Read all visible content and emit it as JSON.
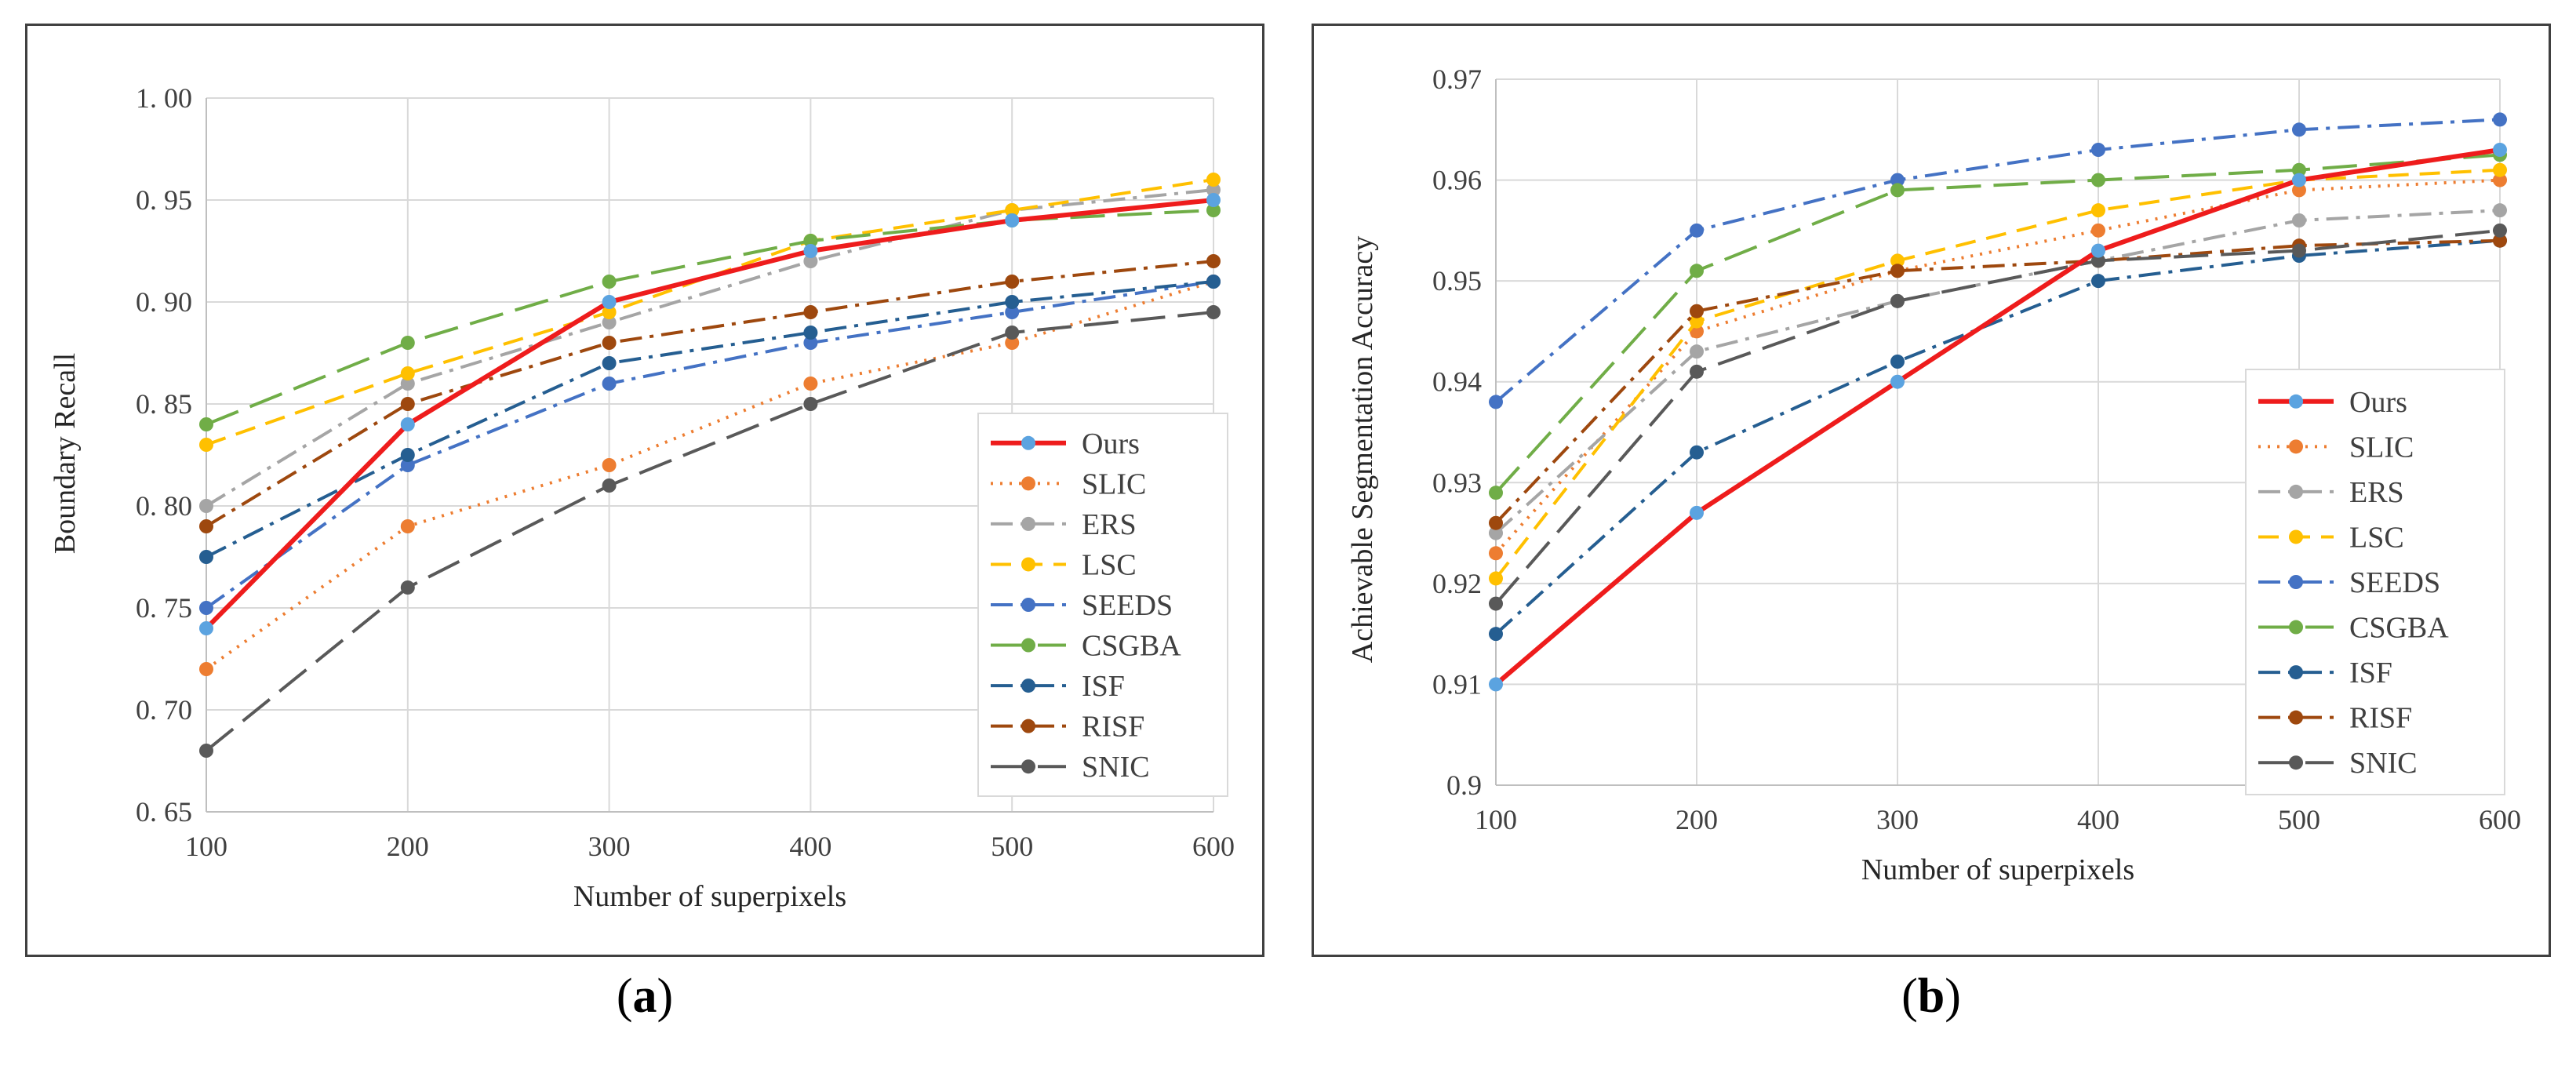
{
  "chart_data": [
    {
      "type": "line",
      "panel": "a",
      "caption_letter": "a",
      "xlabel": "Number of superpixels",
      "ylabel": "Boundary Recall",
      "x": [
        100,
        200,
        300,
        400,
        500,
        600
      ],
      "xticks": [
        "100",
        "200",
        "300",
        "400",
        "500",
        "600"
      ],
      "yticks": [
        "0. 65",
        "0. 70",
        "0. 75",
        "0. 80",
        "0. 85",
        "0. 90",
        "0. 95",
        "1. 00"
      ],
      "ytick_values": [
        0.65,
        0.7,
        0.75,
        0.8,
        0.85,
        0.9,
        0.95,
        1.0
      ],
      "ylim": [
        0.65,
        1.0
      ],
      "grid": true,
      "legend_position": "bottom-right",
      "series": [
        {
          "name": "Ours",
          "color": "#ee1c1c",
          "marker": "#5ba3e0",
          "dash": "solid",
          "values": [
            0.74,
            0.84,
            0.9,
            0.925,
            0.94,
            0.95
          ]
        },
        {
          "name": "SLIC",
          "color": "#ed7d31",
          "marker": "#ed7d31",
          "dash": "dot",
          "values": [
            0.72,
            0.79,
            0.82,
            0.86,
            0.88,
            0.91
          ]
        },
        {
          "name": "ERS",
          "color": "#a5a5a5",
          "marker": "#a5a5a5",
          "dash": "dashdot",
          "values": [
            0.8,
            0.86,
            0.89,
            0.92,
            0.945,
            0.955
          ]
        },
        {
          "name": "LSC",
          "color": "#ffc000",
          "marker": "#ffc000",
          "dash": "dash",
          "values": [
            0.83,
            0.865,
            0.895,
            0.93,
            0.945,
            0.96
          ]
        },
        {
          "name": "SEEDS",
          "color": "#4472c4",
          "marker": "#4472c4",
          "dash": "dashdot",
          "values": [
            0.75,
            0.82,
            0.86,
            0.88,
            0.895,
            0.91
          ]
        },
        {
          "name": "CSGBA",
          "color": "#70ad47",
          "marker": "#70ad47",
          "dash": "longdash",
          "values": [
            0.84,
            0.88,
            0.91,
            0.93,
            0.94,
            0.945
          ]
        },
        {
          "name": "ISF",
          "color": "#255e91",
          "marker": "#255e91",
          "dash": "dashdot",
          "values": [
            0.775,
            0.825,
            0.87,
            0.885,
            0.9,
            0.91
          ]
        },
        {
          "name": "RISF",
          "color": "#9e480e",
          "marker": "#9e480e",
          "dash": "dashdot",
          "values": [
            0.79,
            0.85,
            0.88,
            0.895,
            0.91,
            0.92
          ]
        },
        {
          "name": "SNIC",
          "color": "#595959",
          "marker": "#595959",
          "dash": "longdash",
          "values": [
            0.68,
            0.76,
            0.81,
            0.85,
            0.885,
            0.895
          ]
        }
      ]
    },
    {
      "type": "line",
      "panel": "b",
      "caption_letter": "b",
      "xlabel": "Number of superpixels",
      "ylabel": "Achievable Segmentation Accuracy",
      "x": [
        100,
        200,
        300,
        400,
        500,
        600
      ],
      "xticks": [
        "100",
        "200",
        "300",
        "400",
        "500",
        "600"
      ],
      "yticks": [
        "0.9",
        "0.91",
        "0.92",
        "0.93",
        "0.94",
        "0.95",
        "0.96",
        "0.97"
      ],
      "ytick_values": [
        0.9,
        0.91,
        0.92,
        0.93,
        0.94,
        0.95,
        0.96,
        0.97
      ],
      "ylim": [
        0.9,
        0.97
      ],
      "grid": true,
      "legend_position": "bottom-right",
      "series": [
        {
          "name": "Ours",
          "color": "#ee1c1c",
          "marker": "#5ba3e0",
          "dash": "solid",
          "values": [
            0.91,
            0.927,
            0.94,
            0.953,
            0.96,
            0.963
          ]
        },
        {
          "name": "SLIC",
          "color": "#ed7d31",
          "marker": "#ed7d31",
          "dash": "dot",
          "values": [
            0.923,
            0.945,
            0.951,
            0.955,
            0.959,
            0.96
          ]
        },
        {
          "name": "ERS",
          "color": "#a5a5a5",
          "marker": "#a5a5a5",
          "dash": "dashdot",
          "values": [
            0.925,
            0.943,
            0.948,
            0.952,
            0.956,
            0.957
          ]
        },
        {
          "name": "LSC",
          "color": "#ffc000",
          "marker": "#ffc000",
          "dash": "dash",
          "values": [
            0.9205,
            0.946,
            0.952,
            0.957,
            0.96,
            0.961
          ]
        },
        {
          "name": "SEEDS",
          "color": "#4472c4",
          "marker": "#4472c4",
          "dash": "dashdot",
          "values": [
            0.938,
            0.955,
            0.96,
            0.963,
            0.965,
            0.966
          ]
        },
        {
          "name": "CSGBA",
          "color": "#70ad47",
          "marker": "#70ad47",
          "dash": "longdash",
          "values": [
            0.929,
            0.951,
            0.959,
            0.96,
            0.961,
            0.9625
          ]
        },
        {
          "name": "ISF",
          "color": "#255e91",
          "marker": "#255e91",
          "dash": "dashdot",
          "values": [
            0.915,
            0.933,
            0.942,
            0.95,
            0.9525,
            0.954
          ]
        },
        {
          "name": "RISF",
          "color": "#9e480e",
          "marker": "#9e480e",
          "dash": "dashdot",
          "values": [
            0.926,
            0.947,
            0.951,
            0.952,
            0.9535,
            0.954
          ]
        },
        {
          "name": "SNIC",
          "color": "#595959",
          "marker": "#595959",
          "dash": "longdash",
          "values": [
            0.918,
            0.941,
            0.948,
            0.952,
            0.953,
            0.955
          ]
        }
      ]
    }
  ]
}
